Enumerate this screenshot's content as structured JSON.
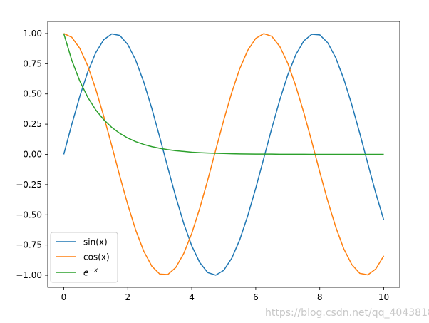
{
  "chart_data": {
    "type": "line",
    "title": "",
    "xlabel": "",
    "ylabel": "",
    "xlim": [
      -0.5,
      10.5
    ],
    "ylim": [
      -1.1,
      1.1
    ],
    "grid": false,
    "legend_position": "lower-left",
    "x_ticks": [
      {
        "value": 0,
        "label": "0"
      },
      {
        "value": 2,
        "label": "2"
      },
      {
        "value": 4,
        "label": "4"
      },
      {
        "value": 6,
        "label": "6"
      },
      {
        "value": 8,
        "label": "8"
      },
      {
        "value": 10,
        "label": "10"
      }
    ],
    "y_ticks": [
      {
        "value": 1.0,
        "label": "1.00"
      },
      {
        "value": 0.75,
        "label": "0.75"
      },
      {
        "value": 0.5,
        "label": "0.50"
      },
      {
        "value": 0.25,
        "label": "0.25"
      },
      {
        "value": 0.0,
        "label": "0.00"
      },
      {
        "value": -0.25,
        "label": "−0.25"
      },
      {
        "value": -0.5,
        "label": "−0.50"
      },
      {
        "value": -0.75,
        "label": "−0.75"
      },
      {
        "value": -1.0,
        "label": "−1.00"
      }
    ],
    "x": [
      0,
      0.25,
      0.5,
      0.75,
      1,
      1.25,
      1.5,
      1.75,
      2,
      2.25,
      2.5,
      2.75,
      3,
      3.25,
      3.5,
      3.75,
      4,
      4.25,
      4.5,
      4.75,
      5,
      5.25,
      5.5,
      5.75,
      6,
      6.25,
      6.5,
      6.75,
      7,
      7.25,
      7.5,
      7.75,
      8,
      8.25,
      8.5,
      8.75,
      9,
      9.25,
      9.5,
      9.75,
      10
    ],
    "series": [
      {
        "name": "sin(x)",
        "color": "#1f77b4",
        "values": [
          0,
          0.247,
          0.479,
          0.682,
          0.841,
          0.949,
          0.997,
          0.984,
          0.909,
          0.778,
          0.598,
          0.382,
          0.141,
          -0.108,
          -0.351,
          -0.572,
          -0.757,
          -0.895,
          -0.978,
          -0.999,
          -0.959,
          -0.859,
          -0.706,
          -0.508,
          -0.279,
          -0.033,
          0.215,
          0.45,
          0.657,
          0.824,
          0.938,
          0.994,
          0.989,
          0.923,
          0.798,
          0.624,
          0.412,
          0.174,
          -0.075,
          -0.32,
          -0.544
        ]
      },
      {
        "name": "cos(x)",
        "color": "#ff7f0e",
        "values": [
          1,
          0.969,
          0.878,
          0.732,
          0.54,
          0.315,
          0.071,
          -0.178,
          -0.416,
          -0.628,
          -0.801,
          -0.924,
          -0.99,
          -0.994,
          -0.936,
          -0.82,
          -0.654,
          -0.446,
          -0.211,
          0.037,
          0.284,
          0.512,
          0.709,
          0.861,
          0.96,
          0.999,
          0.977,
          0.893,
          0.754,
          0.566,
          0.347,
          0.106,
          -0.146,
          -0.386,
          -0.602,
          -0.781,
          -0.911,
          -0.984,
          -0.997,
          -0.948,
          -0.839
        ]
      },
      {
        "name": "e^{-x}",
        "color": "#2ca02c",
        "values": [
          1,
          0.779,
          0.607,
          0.472,
          0.368,
          0.287,
          0.223,
          0.174,
          0.135,
          0.105,
          0.082,
          0.064,
          0.05,
          0.039,
          0.03,
          0.024,
          0.018,
          0.014,
          0.011,
          0.009,
          0.007,
          0.005,
          0.004,
          0.003,
          0.002,
          0.002,
          0.002,
          0.001,
          0.001,
          0.001,
          0.001,
          0,
          0,
          0,
          0,
          0,
          0,
          0,
          0,
          0,
          0
        ]
      }
    ],
    "legend": {
      "entries": [
        {
          "label": "sin(x)",
          "color": "#1f77b4"
        },
        {
          "label": "cos(x)",
          "color": "#ff7f0e"
        },
        {
          "label_base": "e",
          "label_sup": "−x",
          "color": "#2ca02c"
        }
      ]
    }
  },
  "watermark": "https://blog.csdn.net/qq_4043818"
}
